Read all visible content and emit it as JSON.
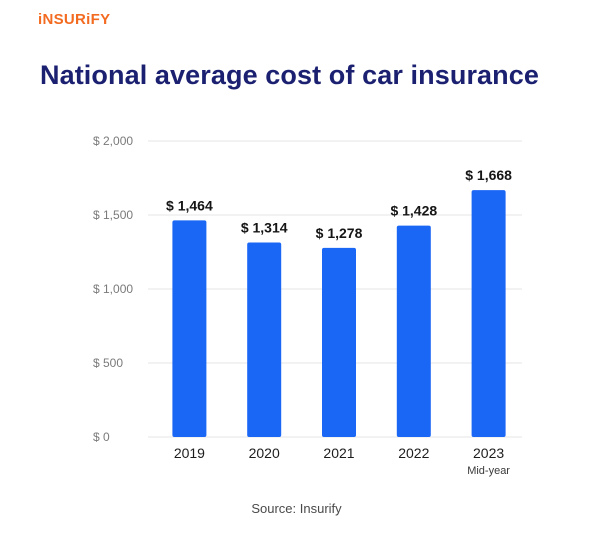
{
  "brand": {
    "logo_text": "iNSURiFY",
    "accent": "#f36b21"
  },
  "header": {
    "title": "National average cost of car insurance"
  },
  "chart_data": {
    "type": "bar",
    "categories": [
      "2019",
      "2020",
      "2021",
      "2022",
      "2023"
    ],
    "category_sublabels": [
      "",
      "",
      "",
      "",
      "Mid-year"
    ],
    "values": [
      1464,
      1314,
      1278,
      1428,
      1668
    ],
    "data_labels": [
      "$ 1,464",
      "$ 1,314",
      "$ 1,278",
      "$ 1,428",
      "$ 1,668"
    ],
    "ylim": [
      0,
      2000
    ],
    "yticks": [
      0,
      500,
      1000,
      1500,
      2000
    ],
    "ytick_labels": [
      "$ 0",
      "$ 500",
      "$ 1,000",
      "$ 1,500",
      "$ 2,000"
    ],
    "bar_color": "#1a66f5",
    "grid": true,
    "title": "",
    "xlabel": "",
    "ylabel": ""
  },
  "footer": {
    "source": "Source: Insurify"
  }
}
